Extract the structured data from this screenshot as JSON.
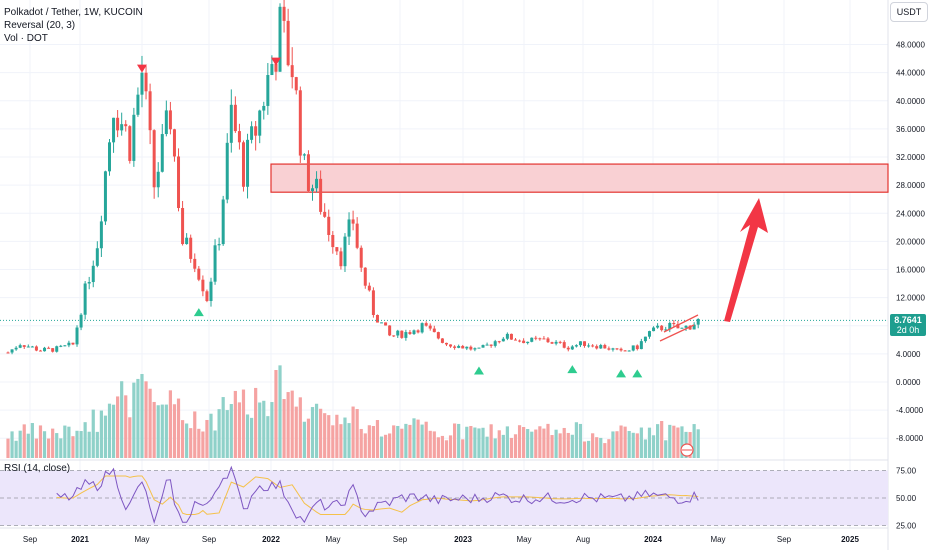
{
  "legend": {
    "symbol_line": "Polkadot / Tether, 1W, KUCOIN",
    "indicator_line": "Reversal (20, 3)",
    "volume_line": "Vol · DOT"
  },
  "currency_button": "USDT",
  "last_price": {
    "value": "8.7641",
    "countdown": "2d 0h"
  },
  "rsi": {
    "label": "RSI (14, close)",
    "ticks": [
      "75.00",
      "50.00",
      "25.00"
    ]
  },
  "colors": {
    "up": "#26a69a",
    "down": "#ef5350",
    "zone": "#f9d0d3",
    "zone_border": "#e3342f",
    "rsi_band": "#ece6fb",
    "rsi_line": "#7e57c2",
    "rsi_ma": "#f5c14a"
  },
  "chart_data": {
    "type": "candlestick",
    "y_axis_ticks": [
      "48.0000",
      "44.0000",
      "40.0000",
      "36.0000",
      "32.0000",
      "28.0000",
      "24.0000",
      "20.0000",
      "16.0000",
      "12.0000",
      "8.0000",
      "4.0000",
      "0.0000",
      "-4.0000",
      "-8.0000"
    ],
    "x_axis_ticks": [
      "Sep",
      "2021",
      "May",
      "Sep",
      "2022",
      "May",
      "Sep",
      "2023",
      "May",
      "Aug",
      "2024",
      "May",
      "Sep",
      "2025"
    ],
    "ylim": [
      -10,
      53
    ],
    "resistance_zone": [
      27,
      31
    ],
    "price_path": [
      [
        0,
        4.2
      ],
      [
        3,
        5.5
      ],
      [
        8,
        4.5
      ],
      [
        12,
        4.7
      ],
      [
        16,
        5.3
      ],
      [
        18,
        10.5
      ],
      [
        22,
        20
      ],
      [
        26,
        40
      ],
      [
        30,
        34
      ],
      [
        33,
        44
      ],
      [
        36,
        28
      ],
      [
        40,
        38
      ],
      [
        43,
        20
      ],
      [
        46,
        17.5
      ],
      [
        49,
        12
      ],
      [
        52,
        21
      ],
      [
        55,
        38
      ],
      [
        58,
        30
      ],
      [
        61,
        36
      ],
      [
        64,
        43
      ],
      [
        67,
        50
      ],
      [
        70,
        45
      ],
      [
        73,
        30
      ],
      [
        76,
        27
      ],
      [
        79,
        22
      ],
      [
        82,
        18
      ],
      [
        85,
        23
      ],
      [
        87,
        16
      ],
      [
        90,
        10
      ],
      [
        94,
        6.5
      ],
      [
        98,
        7
      ],
      [
        102,
        8
      ],
      [
        108,
        5.5
      ],
      [
        112,
        5
      ],
      [
        116,
        4.5
      ],
      [
        122,
        6.5
      ],
      [
        128,
        5.8
      ],
      [
        132,
        6
      ],
      [
        138,
        5
      ],
      [
        142,
        5.5
      ],
      [
        147,
        5
      ],
      [
        151,
        4.2
      ],
      [
        155,
        5
      ],
      [
        158,
        7
      ],
      [
        162,
        8
      ],
      [
        166,
        7.5
      ],
      [
        170,
        8.7
      ]
    ],
    "reversal_markers": [
      {
        "kind": "down",
        "t": 33,
        "price": 44
      },
      {
        "kind": "down",
        "t": 66,
        "price": 45
      },
      {
        "kind": "up",
        "t": 47,
        "price": 10.5
      },
      {
        "kind": "up",
        "t": 116,
        "price": 2.2
      },
      {
        "kind": "up",
        "t": 139,
        "price": 2.4
      },
      {
        "kind": "up",
        "t": 151,
        "price": 1.8
      },
      {
        "kind": "up",
        "t": 155,
        "price": 1.8
      }
    ]
  }
}
